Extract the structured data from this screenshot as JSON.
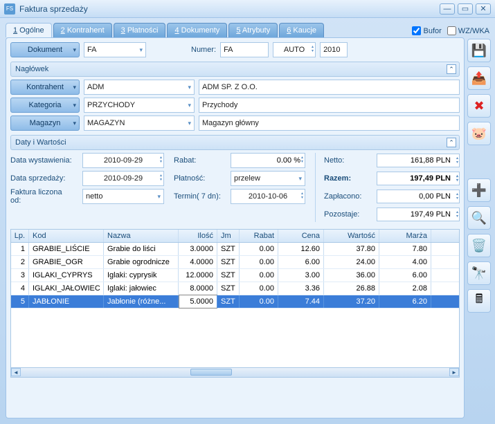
{
  "window": {
    "title": "Faktura sprzedaży",
    "icon": "FS"
  },
  "tabs": [
    {
      "n": "1",
      "label": "Ogólne",
      "active": true
    },
    {
      "n": "2",
      "label": "Kontrahent"
    },
    {
      "n": "3",
      "label": "Płatności"
    },
    {
      "n": "4",
      "label": "Dokumenty"
    },
    {
      "n": "5",
      "label": "Atrybuty"
    },
    {
      "n": "6",
      "label": "Kaucje"
    }
  ],
  "top_checks": {
    "bufor": "Bufor",
    "bufor_checked": true,
    "wzwka": "WZ/WKA",
    "wzwka_checked": false
  },
  "doc": {
    "btn": "Dokument",
    "type": "FA",
    "numer_lbl": "Numer:",
    "numer": "FA",
    "auto": "AUTO",
    "year": "2010"
  },
  "sections": {
    "naglowek": "Nagłówek",
    "daty": "Daty i Wartości"
  },
  "header": {
    "kontrahent_btn": "Kontrahent",
    "kontrahent_code": "ADM",
    "kontrahent_name": "ADM SP. Z O.O.",
    "kategoria_btn": "Kategoria",
    "kategoria_code": "PRZYCHODY",
    "kategoria_name": "Przychody",
    "magazyn_btn": "Magazyn",
    "magazyn_code": "MAGAZYN",
    "magazyn_name": "Magazyn główny"
  },
  "dates": {
    "wyst_lbl": "Data wystawienia:",
    "wyst": "2010-09-29",
    "sprz_lbl": "Data sprzedaży:",
    "sprz": "2010-09-29",
    "liczona_lbl": "Faktura liczona od:",
    "liczona": "netto",
    "rabat_lbl": "Rabat:",
    "rabat": "0.00 %",
    "platnosc_lbl": "Płatność:",
    "platnosc": "przelew",
    "termin_lbl": "Termin(   7 dn):",
    "termin": "2010-10-06"
  },
  "totals": {
    "netto_lbl": "Netto:",
    "netto": "161,88 PLN",
    "razem_lbl": "Razem:",
    "razem": "197,49 PLN",
    "zapl_lbl": "Zapłacono:",
    "zapl": "0,00 PLN",
    "poz_lbl": "Pozostaje:",
    "poz": "197,49 PLN"
  },
  "grid": {
    "cols": {
      "lp": "Lp.",
      "kod": "Kod",
      "nazwa": "Nazwa",
      "ilosc": "Ilość",
      "jm": "Jm",
      "rabat": "Rabat",
      "cena": "Cena",
      "wart": "Wartość",
      "marza": "Marża"
    },
    "rows": [
      {
        "lp": "1",
        "kod": "GRABIE_LIŚCIE",
        "nazwa": "Grabie do liści",
        "ilosc": "3.0000",
        "jm": "SZT",
        "rabat": "0.00",
        "cena": "12.60",
        "wart": "37.80",
        "marza": "7.80"
      },
      {
        "lp": "2",
        "kod": "GRABIE_OGR",
        "nazwa": "Grabie ogrodnicze",
        "ilosc": "4.0000",
        "jm": "SZT",
        "rabat": "0.00",
        "cena": "6.00",
        "wart": "24.00",
        "marza": "4.00"
      },
      {
        "lp": "3",
        "kod": "IGLAKI_CYPRYS",
        "nazwa": "Iglaki: cyprysik",
        "ilosc": "12.0000",
        "jm": "SZT",
        "rabat": "0.00",
        "cena": "3.00",
        "wart": "36.00",
        "marza": "6.00"
      },
      {
        "lp": "4",
        "kod": "IGLAKI_JAŁOWIEC",
        "nazwa": "Iglaki: jałowiec",
        "ilosc": "8.0000",
        "jm": "SZT",
        "rabat": "0.00",
        "cena": "3.36",
        "wart": "26.88",
        "marza": "2.08"
      },
      {
        "lp": "5",
        "kod": "JABŁONIE",
        "nazwa": "Jabłonie (różne...",
        "ilosc": "5.0000",
        "jm": "SZT",
        "rabat": "0.00",
        "cena": "7.44",
        "wart": "37.20",
        "marza": "6.20",
        "selected": true
      }
    ]
  }
}
